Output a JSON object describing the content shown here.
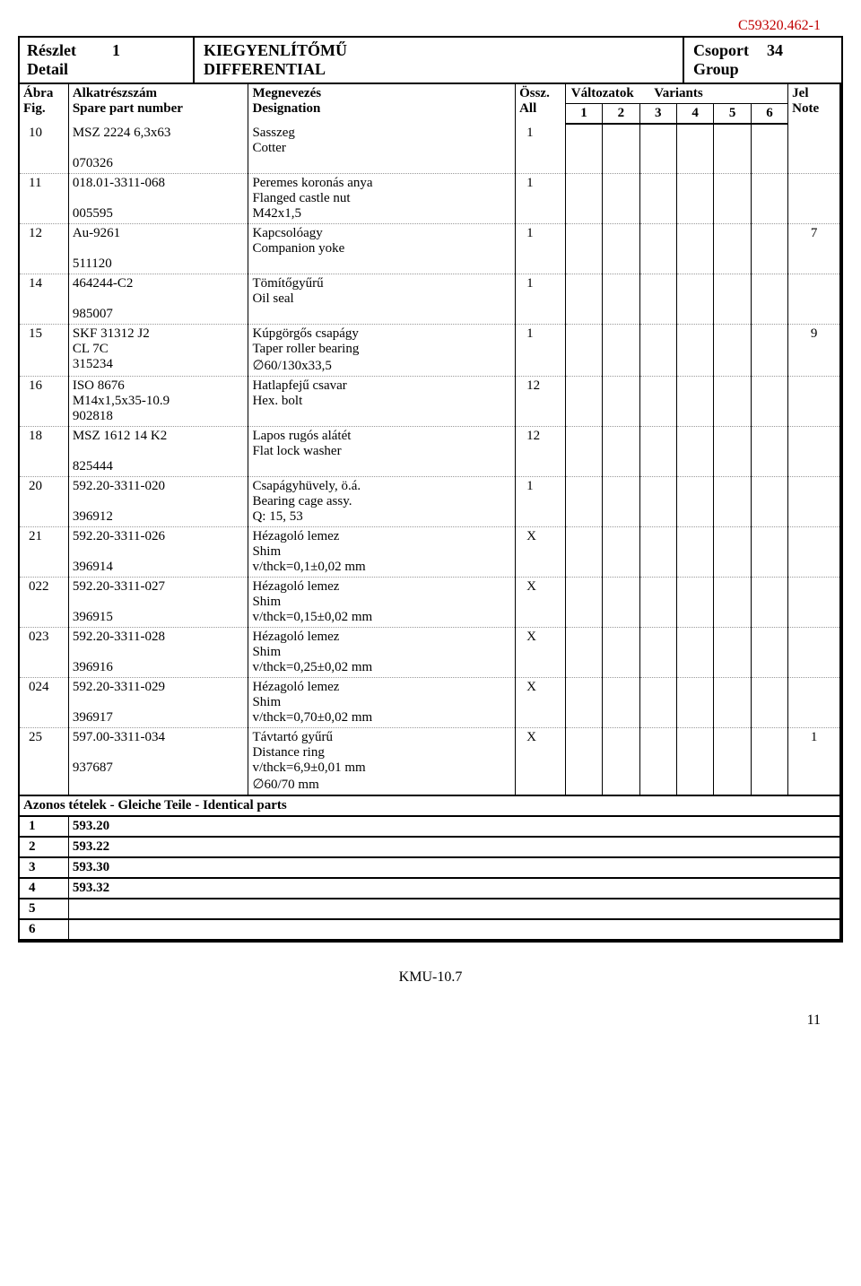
{
  "doc_id": "C59320.462-1",
  "header": {
    "detail_hu": "Részlet",
    "detail_en": "Detail",
    "detail_num": "1",
    "title_hu": "KIEGYENLÍTŐMŰ",
    "title_en": "DIFFERENTIAL",
    "group_hu": "Csoport",
    "group_en": "Group",
    "group_num": "34"
  },
  "columns": {
    "fig_hu": "Ábra",
    "fig_en": "Fig.",
    "part_hu": "Alkatrészszám",
    "part_en": "Spare part number",
    "desig_hu": "Megnevezés",
    "desig_en": "Designation",
    "all_hu": "Össz.",
    "all_en": "All",
    "var_hu": "Változatok",
    "var_en": "Variants",
    "v1": "1",
    "v2": "2",
    "v3": "3",
    "v4": "4",
    "v5": "5",
    "v6": "6",
    "note_hu": "Jel",
    "note_en": "Note"
  },
  "rows": [
    {
      "fig": "10",
      "part": "MSZ 2224 6,3x63\n\n070326",
      "desig": "Sasszeg\nCotter",
      "all": "1",
      "v": [
        "",
        "",
        "",
        "",
        "",
        ""
      ],
      "note": ""
    },
    {
      "fig": "11",
      "part": "018.01-3311-068\n\n005595",
      "desig": "Peremes koronás anya\nFlanged castle nut\nM42x1,5",
      "all": "1",
      "v": [
        "",
        "",
        "",
        "",
        "",
        ""
      ],
      "note": ""
    },
    {
      "fig": "12",
      "part": "Au-9261\n\n511120",
      "desig": "Kapcsolóagy\nCompanion yoke",
      "all": "1",
      "v": [
        "",
        "",
        "",
        "",
        "",
        ""
      ],
      "note": "7"
    },
    {
      "fig": "14",
      "part": "464244-C2\n\n985007",
      "desig": "Tömítőgyűrű\nOil seal",
      "all": "1",
      "v": [
        "",
        "",
        "",
        "",
        "",
        ""
      ],
      "note": ""
    },
    {
      "fig": "15",
      "part": "SKF 31312 J2\nCL 7C\n315234",
      "desig": "Kúpgörgős csapágy\nTaper roller bearing\n∅60/130x33,5",
      "all": "1",
      "v": [
        "",
        "",
        "",
        "",
        "",
        ""
      ],
      "note": "9"
    },
    {
      "fig": "16",
      "part": "ISO 8676\nM14x1,5x35-10.9\n902818",
      "desig": "Hatlapfejű csavar\nHex. bolt",
      "all": "12",
      "v": [
        "",
        "",
        "",
        "",
        "",
        ""
      ],
      "note": ""
    },
    {
      "fig": "18",
      "part": "MSZ 1612 14 K2\n\n825444",
      "desig": "Lapos rugós alátét\nFlat lock washer",
      "all": "12",
      "v": [
        "",
        "",
        "",
        "",
        "",
        ""
      ],
      "note": ""
    },
    {
      "fig": "20",
      "part": "592.20-3311-020\n\n396912",
      "desig": "Csapágyhüvely, ö.á.\nBearing cage assy.\nQ: 15, 53",
      "all": "1",
      "v": [
        "",
        "",
        "",
        "",
        "",
        ""
      ],
      "note": ""
    },
    {
      "fig": "21",
      "part": "592.20-3311-026\n\n396914",
      "desig": "Hézagoló lemez\nShim\nv/thck=0,1±0,02 mm",
      "all": "X",
      "v": [
        "",
        "",
        "",
        "",
        "",
        ""
      ],
      "note": ""
    },
    {
      "fig": "022",
      "part": "592.20-3311-027\n\n396915",
      "desig": "Hézagoló lemez\nShim\nv/thck=0,15±0,02 mm",
      "all": "X",
      "v": [
        "",
        "",
        "",
        "",
        "",
        ""
      ],
      "note": ""
    },
    {
      "fig": "023",
      "part": "592.20-3311-028\n\n396916",
      "desig": "Hézagoló lemez\nShim\nv/thck=0,25±0,02 mm",
      "all": "X",
      "v": [
        "",
        "",
        "",
        "",
        "",
        ""
      ],
      "note": ""
    },
    {
      "fig": "024",
      "part": "592.20-3311-029\n\n396917",
      "desig": "Hézagoló lemez\nShim\nv/thck=0,70±0,02 mm",
      "all": "X",
      "v": [
        "",
        "",
        "",
        "",
        "",
        ""
      ],
      "note": ""
    },
    {
      "fig": "25",
      "part": "597.00-3311-034\n\n937687",
      "desig": "Távtartó gyűrű\nDistance ring\nv/thck=6,9±0,01 mm\n∅60/70 mm",
      "all": "X",
      "v": [
        "",
        "",
        "",
        "",
        "",
        ""
      ],
      "note": "1"
    }
  ],
  "identical_header": "Azonos tételek - Gleiche Teile - Identical parts",
  "identical": [
    {
      "n": "1",
      "val": "593.20"
    },
    {
      "n": "2",
      "val": "593.22"
    },
    {
      "n": "3",
      "val": "593.30"
    },
    {
      "n": "4",
      "val": "593.32"
    },
    {
      "n": "5",
      "val": ""
    },
    {
      "n": "6",
      "val": ""
    }
  ],
  "footer": "KMU-10.7",
  "pagenum": "11"
}
